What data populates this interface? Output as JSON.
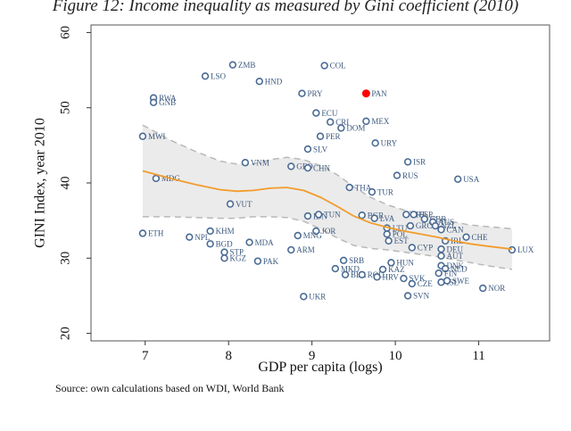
{
  "figure": {
    "title": "Figure 12: Income inequality as measured by Gini coefficient (2010)",
    "source": "Source: own calculations based on WDI, World Bank"
  },
  "colors": {
    "point": "#4a6b94",
    "highlight": "#ff0000",
    "fit": "#f39c2c",
    "band": "#ebebeb",
    "band_edge": "#b8b8b8"
  },
  "chart_data": {
    "type": "scatter",
    "xlabel": "GDP per capita (logs)",
    "ylabel": "GINI Index, year 2010",
    "xlim": [
      6.35,
      11.85
    ],
    "ylim": [
      19,
      61
    ],
    "xticks": [
      7,
      8,
      9,
      10,
      11
    ],
    "yticks": [
      20,
      30,
      40,
      50,
      60
    ],
    "grid": false,
    "points": [
      {
        "label": "ZMB",
        "x": 8.05,
        "y": 55.7
      },
      {
        "label": "LSO",
        "x": 7.72,
        "y": 54.2
      },
      {
        "label": "HND",
        "x": 8.37,
        "y": 53.5
      },
      {
        "label": "COL",
        "x": 9.15,
        "y": 55.6
      },
      {
        "label": "RWA",
        "x": 7.1,
        "y": 51.3
      },
      {
        "label": "GNB",
        "x": 7.1,
        "y": 50.7
      },
      {
        "label": "PRY",
        "x": 8.88,
        "y": 51.9
      },
      {
        "label": "PAN",
        "x": 9.65,
        "y": 51.9,
        "highlight": true
      },
      {
        "label": "ECU",
        "x": 9.05,
        "y": 49.3
      },
      {
        "label": "CRI",
        "x": 9.22,
        "y": 48.1
      },
      {
        "label": "MEX",
        "x": 9.65,
        "y": 48.2
      },
      {
        "label": "DOM",
        "x": 9.35,
        "y": 47.3
      },
      {
        "label": "PER",
        "x": 9.1,
        "y": 46.2
      },
      {
        "label": "MWI",
        "x": 6.97,
        "y": 46.2
      },
      {
        "label": "URY",
        "x": 9.76,
        "y": 45.3
      },
      {
        "label": "SLV",
        "x": 8.95,
        "y": 44.5
      },
      {
        "label": "VNM",
        "x": 8.2,
        "y": 42.7
      },
      {
        "label": "GEO",
        "x": 8.75,
        "y": 42.2
      },
      {
        "label": "CHN",
        "x": 8.95,
        "y": 42.0
      },
      {
        "label": "ISR",
        "x": 10.15,
        "y": 42.8
      },
      {
        "label": "MDG",
        "x": 7.13,
        "y": 40.6
      },
      {
        "label": "RUS",
        "x": 10.02,
        "y": 41.0
      },
      {
        "label": "USA",
        "x": 10.75,
        "y": 40.5
      },
      {
        "label": "THA",
        "x": 9.45,
        "y": 39.4
      },
      {
        "label": "TUR",
        "x": 9.72,
        "y": 38.8
      },
      {
        "label": "VUT",
        "x": 8.02,
        "y": 37.2
      },
      {
        "label": "IDN",
        "x": 8.95,
        "y": 35.6
      },
      {
        "label": "TUN",
        "x": 9.08,
        "y": 35.8
      },
      {
        "label": "BGR",
        "x": 9.6,
        "y": 35.7
      },
      {
        "label": "LVA",
        "x": 9.75,
        "y": 35.3
      },
      {
        "label": "PRT",
        "x": 10.13,
        "y": 35.8
      },
      {
        "label": "ESP",
        "x": 10.22,
        "y": 35.8
      },
      {
        "label": "GBR",
        "x": 10.35,
        "y": 35.2
      },
      {
        "label": "AUS",
        "x": 10.45,
        "y": 34.8
      },
      {
        "label": "GRC",
        "x": 10.18,
        "y": 34.3
      },
      {
        "label": "LTU",
        "x": 9.9,
        "y": 34.0
      },
      {
        "label": "NZL",
        "x": 10.48,
        "y": 34.3
      },
      {
        "label": "POL",
        "x": 9.9,
        "y": 33.2
      },
      {
        "label": "CAN",
        "x": 10.55,
        "y": 33.8
      },
      {
        "label": "JOR",
        "x": 9.05,
        "y": 33.6
      },
      {
        "label": "MNG",
        "x": 8.83,
        "y": 33.0
      },
      {
        "label": "EST",
        "x": 9.92,
        "y": 32.3
      },
      {
        "label": "IRL",
        "x": 10.6,
        "y": 32.3
      },
      {
        "label": "CHE",
        "x": 10.85,
        "y": 32.8
      },
      {
        "label": "ETH",
        "x": 6.97,
        "y": 33.3
      },
      {
        "label": "NPL",
        "x": 7.53,
        "y": 32.8
      },
      {
        "label": "KHM",
        "x": 7.78,
        "y": 33.6
      },
      {
        "label": "BGD",
        "x": 7.78,
        "y": 31.9
      },
      {
        "label": "MDA",
        "x": 8.25,
        "y": 32.1
      },
      {
        "label": "STP",
        "x": 7.95,
        "y": 30.8
      },
      {
        "label": "KGZ",
        "x": 7.95,
        "y": 30.0
      },
      {
        "label": "PAK",
        "x": 8.35,
        "y": 29.6
      },
      {
        "label": "ARM",
        "x": 8.75,
        "y": 31.1
      },
      {
        "label": "CYP",
        "x": 10.2,
        "y": 31.4
      },
      {
        "label": "DEU",
        "x": 10.55,
        "y": 31.2
      },
      {
        "label": "AUT",
        "x": 10.55,
        "y": 30.3
      },
      {
        "label": "LUX",
        "x": 11.4,
        "y": 31.1
      },
      {
        "label": "SRB",
        "x": 9.38,
        "y": 29.7
      },
      {
        "label": "HUN",
        "x": 9.95,
        "y": 29.4
      },
      {
        "label": "DNK",
        "x": 10.55,
        "y": 29.0
      },
      {
        "label": "NLD",
        "x": 10.6,
        "y": 28.6
      },
      {
        "label": "MKD",
        "x": 9.28,
        "y": 28.6
      },
      {
        "label": "KAZ",
        "x": 9.85,
        "y": 28.5
      },
      {
        "label": "BLR",
        "x": 9.4,
        "y": 27.8
      },
      {
        "label": "ROU",
        "x": 9.6,
        "y": 27.8
      },
      {
        "label": "HRV",
        "x": 9.78,
        "y": 27.5
      },
      {
        "label": "SVK",
        "x": 10.1,
        "y": 27.3
      },
      {
        "label": "FIN",
        "x": 10.52,
        "y": 28.0
      },
      {
        "label": "CZE",
        "x": 10.2,
        "y": 26.6
      },
      {
        "label": "ISL",
        "x": 10.55,
        "y": 26.8
      },
      {
        "label": "SWE",
        "x": 10.62,
        "y": 27.0
      },
      {
        "label": "NOR",
        "x": 11.05,
        "y": 26.0
      },
      {
        "label": "SVN",
        "x": 10.15,
        "y": 25.0
      },
      {
        "label": "UKR",
        "x": 8.9,
        "y": 24.9
      }
    ],
    "fit_line": {
      "x": [
        6.97,
        7.3,
        7.6,
        7.9,
        8.1,
        8.3,
        8.5,
        8.7,
        8.9,
        9.1,
        9.3,
        9.5,
        9.7,
        9.9,
        10.1,
        10.3,
        10.5,
        10.7,
        10.9,
        11.1,
        11.4
      ],
      "y": [
        41.6,
        40.6,
        39.8,
        39.1,
        38.9,
        39.0,
        39.3,
        39.4,
        39.0,
        38.1,
        36.9,
        35.6,
        34.7,
        34.1,
        33.6,
        33.2,
        32.8,
        32.3,
        31.9,
        31.6,
        31.2
      ],
      "lower": [
        35.5,
        35.5,
        35.4,
        35.3,
        35.3,
        35.5,
        35.5,
        35.4,
        34.9,
        33.9,
        32.7,
        31.7,
        31.3,
        31.1,
        30.8,
        30.5,
        30.2,
        29.8,
        29.4,
        29.0,
        28.5
      ],
      "upper": [
        47.7,
        45.7,
        44.2,
        42.9,
        42.5,
        42.5,
        43.1,
        43.4,
        43.1,
        42.3,
        41.1,
        39.5,
        38.1,
        37.1,
        36.4,
        35.9,
        35.4,
        34.8,
        34.4,
        34.2,
        33.9
      ]
    }
  }
}
